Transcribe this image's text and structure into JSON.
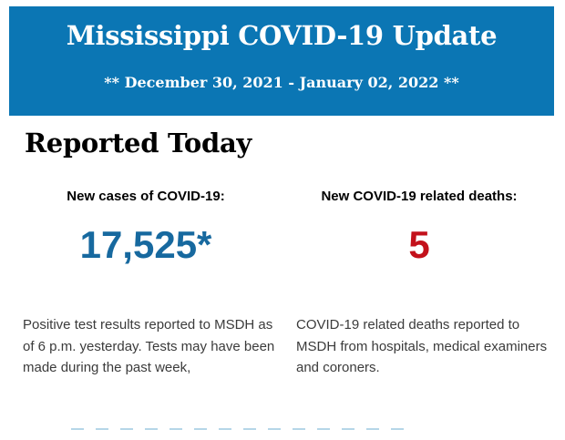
{
  "header": {
    "background": "#0b76b4",
    "text_color": "#ffffff",
    "title": "Mississippi COVID-19 Update",
    "subtitle": "** December 30, 2021 - January 02, 2022 **"
  },
  "section": {
    "title": "Reported Today"
  },
  "stats": [
    {
      "label": "New cases of COVID-19:",
      "value": "17,525*",
      "value_color": "#17699f",
      "description": "Positive test results reported to MSDH as of 6 p.m. yesterday. Tests may have been made during the past week,"
    },
    {
      "label": "New COVID-19 related deaths:",
      "value": "5",
      "value_color": "#c3111b",
      "description": "COVID-19 related deaths reported to MSDH from hospitals, medical examiners and coroners."
    }
  ]
}
